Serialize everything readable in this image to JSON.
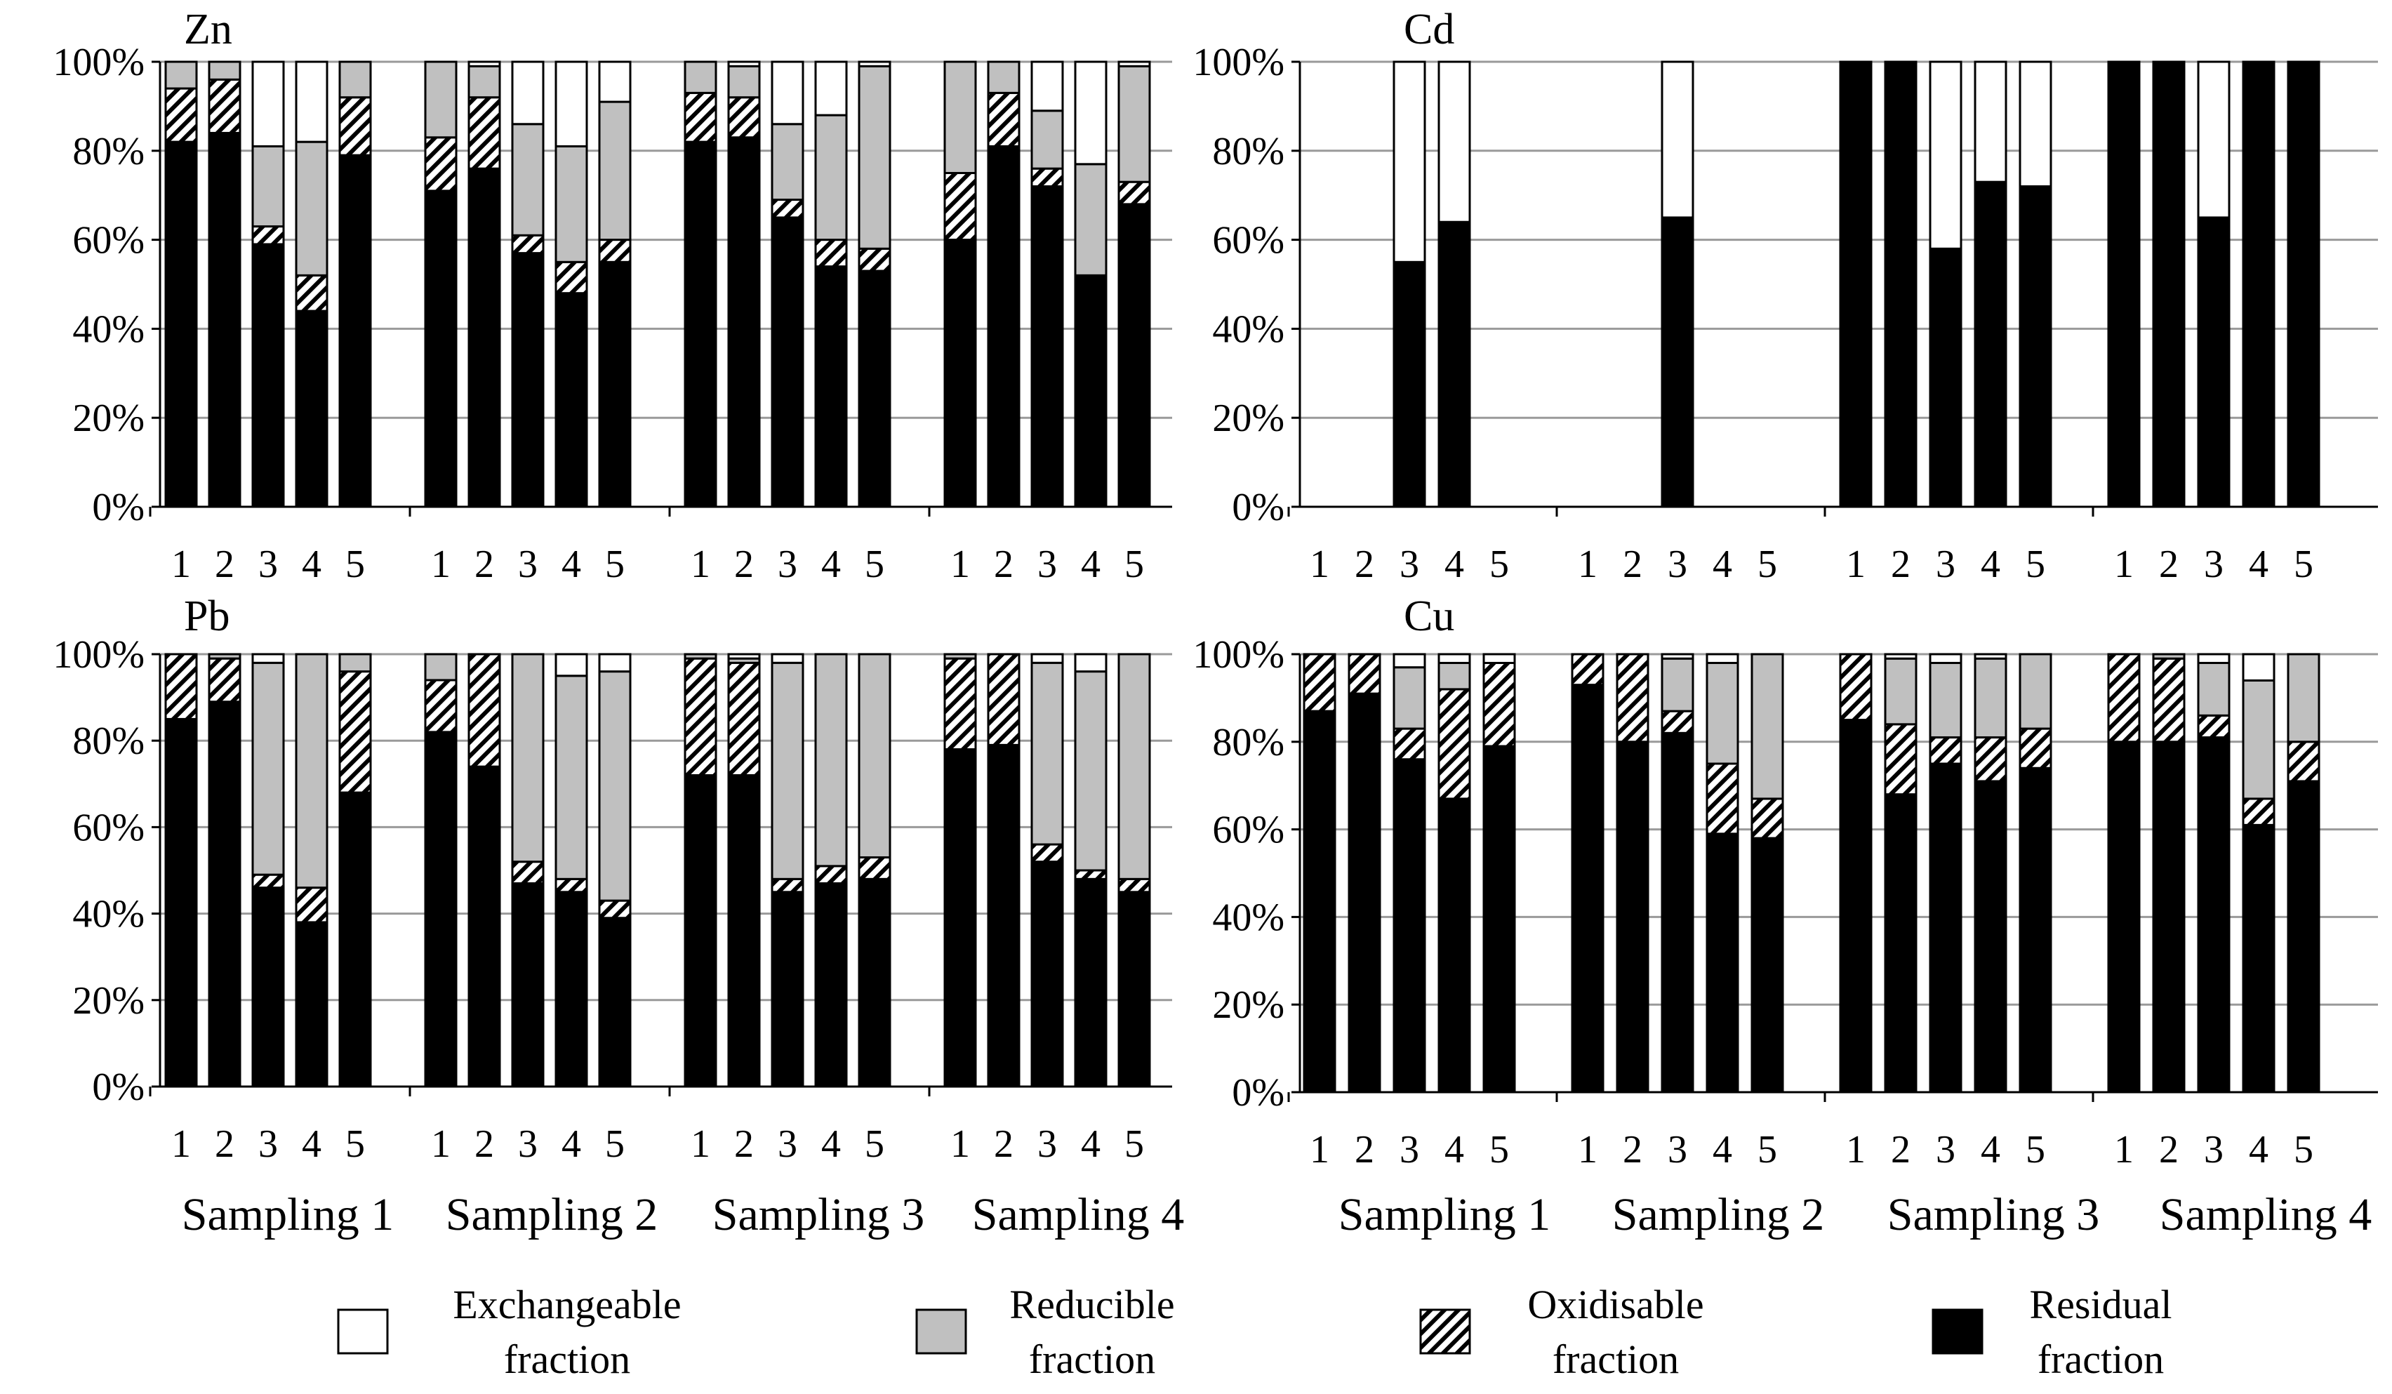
{
  "chart_data": [
    {
      "type": "bar",
      "stacked": true,
      "title": "Zn",
      "ylim": [
        0,
        100
      ],
      "yticks": [
        "0%",
        "20%",
        "40%",
        "60%",
        "80%",
        "100%"
      ],
      "groups": [
        {
          "label": "Sampling 1",
          "bars": [
            {
              "label": "1",
              "residual": 82,
              "oxidisable": 12,
              "reducible": 6,
              "exchangeable": 0
            },
            {
              "label": "2",
              "residual": 84,
              "oxidisable": 12,
              "reducible": 4,
              "exchangeable": 0
            },
            {
              "label": "3",
              "residual": 59,
              "oxidisable": 4,
              "reducible": 18,
              "exchangeable": 19
            },
            {
              "label": "4",
              "residual": 44,
              "oxidisable": 8,
              "reducible": 30,
              "exchangeable": 18
            },
            {
              "label": "5",
              "residual": 79,
              "oxidisable": 13,
              "reducible": 8,
              "exchangeable": 0
            }
          ]
        },
        {
          "label": "Sampling 2",
          "bars": [
            {
              "label": "1",
              "residual": 71,
              "oxidisable": 12,
              "reducible": 17,
              "exchangeable": 0
            },
            {
              "label": "2",
              "residual": 76,
              "oxidisable": 16,
              "reducible": 7,
              "exchangeable": 1
            },
            {
              "label": "3",
              "residual": 57,
              "oxidisable": 4,
              "reducible": 25,
              "exchangeable": 14
            },
            {
              "label": "4",
              "residual": 48,
              "oxidisable": 7,
              "reducible": 26,
              "exchangeable": 19
            },
            {
              "label": "5",
              "residual": 55,
              "oxidisable": 5,
              "reducible": 31,
              "exchangeable": 9
            }
          ]
        },
        {
          "label": "Sampling 3",
          "bars": [
            {
              "label": "1",
              "residual": 82,
              "oxidisable": 11,
              "reducible": 7,
              "exchangeable": 0
            },
            {
              "label": "2",
              "residual": 83,
              "oxidisable": 9,
              "reducible": 7,
              "exchangeable": 1
            },
            {
              "label": "3",
              "residual": 65,
              "oxidisable": 4,
              "reducible": 17,
              "exchangeable": 14
            },
            {
              "label": "4",
              "residual": 54,
              "oxidisable": 6,
              "reducible": 28,
              "exchangeable": 12
            },
            {
              "label": "5",
              "residual": 53,
              "oxidisable": 5,
              "reducible": 41,
              "exchangeable": 1
            }
          ]
        },
        {
          "label": "Sampling 4",
          "bars": [
            {
              "label": "1",
              "residual": 60,
              "oxidisable": 15,
              "reducible": 25,
              "exchangeable": 0
            },
            {
              "label": "2",
              "residual": 81,
              "oxidisable": 12,
              "reducible": 7,
              "exchangeable": 0
            },
            {
              "label": "3",
              "residual": 72,
              "oxidisable": 4,
              "reducible": 13,
              "exchangeable": 11
            },
            {
              "label": "4",
              "residual": 52,
              "oxidisable": 0,
              "reducible": 25,
              "exchangeable": 23
            },
            {
              "label": "5",
              "residual": 68,
              "oxidisable": 5,
              "reducible": 26,
              "exchangeable": 1
            }
          ]
        }
      ]
    },
    {
      "type": "bar",
      "stacked": true,
      "title": "Cd",
      "ylim": [
        0,
        100
      ],
      "yticks": [
        "0%",
        "20%",
        "40%",
        "60%",
        "80%",
        "100%"
      ],
      "groups": [
        {
          "label": "Sampling 1",
          "bars": [
            {
              "label": "1",
              "residual": 0,
              "oxidisable": 0,
              "reducible": 0,
              "exchangeable": 0
            },
            {
              "label": "2",
              "residual": 0,
              "oxidisable": 0,
              "reducible": 0,
              "exchangeable": 0
            },
            {
              "label": "3",
              "residual": 55,
              "oxidisable": 0,
              "reducible": 0,
              "exchangeable": 45
            },
            {
              "label": "4",
              "residual": 64,
              "oxidisable": 0,
              "reducible": 0,
              "exchangeable": 36
            },
            {
              "label": "5",
              "residual": 0,
              "oxidisable": 0,
              "reducible": 0,
              "exchangeable": 0
            }
          ]
        },
        {
          "label": "Sampling 2",
          "bars": [
            {
              "label": "1",
              "residual": 0,
              "oxidisable": 0,
              "reducible": 0,
              "exchangeable": 0
            },
            {
              "label": "2",
              "residual": 0,
              "oxidisable": 0,
              "reducible": 0,
              "exchangeable": 0
            },
            {
              "label": "3",
              "residual": 65,
              "oxidisable": 0,
              "reducible": 0,
              "exchangeable": 35
            },
            {
              "label": "4",
              "residual": 0,
              "oxidisable": 0,
              "reducible": 0,
              "exchangeable": 0
            },
            {
              "label": "5",
              "residual": 0,
              "oxidisable": 0,
              "reducible": 0,
              "exchangeable": 0
            }
          ]
        },
        {
          "label": "Sampling 3",
          "bars": [
            {
              "label": "1",
              "residual": 100,
              "oxidisable": 0,
              "reducible": 0,
              "exchangeable": 0
            },
            {
              "label": "2",
              "residual": 100,
              "oxidisable": 0,
              "reducible": 0,
              "exchangeable": 0
            },
            {
              "label": "3",
              "residual": 58,
              "oxidisable": 0,
              "reducible": 0,
              "exchangeable": 42
            },
            {
              "label": "4",
              "residual": 73,
              "oxidisable": 0,
              "reducible": 0,
              "exchangeable": 27
            },
            {
              "label": "5",
              "residual": 72,
              "oxidisable": 0,
              "reducible": 0,
              "exchangeable": 28
            }
          ]
        },
        {
          "label": "Sampling 4",
          "bars": [
            {
              "label": "1",
              "residual": 100,
              "oxidisable": 0,
              "reducible": 0,
              "exchangeable": 0
            },
            {
              "label": "2",
              "residual": 100,
              "oxidisable": 0,
              "reducible": 0,
              "exchangeable": 0
            },
            {
              "label": "3",
              "residual": 65,
              "oxidisable": 0,
              "reducible": 0,
              "exchangeable": 35
            },
            {
              "label": "4",
              "residual": 100,
              "oxidisable": 0,
              "reducible": 0,
              "exchangeable": 0
            },
            {
              "label": "5",
              "residual": 100,
              "oxidisable": 0,
              "reducible": 0,
              "exchangeable": 0
            }
          ]
        }
      ]
    },
    {
      "type": "bar",
      "stacked": true,
      "title": "Pb",
      "ylim": [
        0,
        100
      ],
      "yticks": [
        "0%",
        "20%",
        "40%",
        "60%",
        "80%",
        "100%"
      ],
      "groups": [
        {
          "label": "Sampling 1",
          "bars": [
            {
              "label": "1",
              "residual": 85,
              "oxidisable": 15,
              "reducible": 0,
              "exchangeable": 0
            },
            {
              "label": "2",
              "residual": 89,
              "oxidisable": 10,
              "reducible": 1,
              "exchangeable": 0
            },
            {
              "label": "3",
              "residual": 46,
              "oxidisable": 3,
              "reducible": 49,
              "exchangeable": 2
            },
            {
              "label": "4",
              "residual": 38,
              "oxidisable": 8,
              "reducible": 54,
              "exchangeable": 0
            },
            {
              "label": "5",
              "residual": 68,
              "oxidisable": 28,
              "reducible": 4,
              "exchangeable": 0
            }
          ]
        },
        {
          "label": "Sampling 2",
          "bars": [
            {
              "label": "1",
              "residual": 82,
              "oxidisable": 12,
              "reducible": 6,
              "exchangeable": 0
            },
            {
              "label": "2",
              "residual": 74,
              "oxidisable": 26,
              "reducible": 0,
              "exchangeable": 0
            },
            {
              "label": "3",
              "residual": 47,
              "oxidisable": 5,
              "reducible": 48,
              "exchangeable": 0
            },
            {
              "label": "4",
              "residual": 45,
              "oxidisable": 3,
              "reducible": 47,
              "exchangeable": 5
            },
            {
              "label": "5",
              "residual": 39,
              "oxidisable": 4,
              "reducible": 53,
              "exchangeable": 4
            }
          ]
        },
        {
          "label": "Sampling 3",
          "bars": [
            {
              "label": "1",
              "residual": 72,
              "oxidisable": 27,
              "reducible": 1,
              "exchangeable": 0
            },
            {
              "label": "2",
              "residual": 72,
              "oxidisable": 26,
              "reducible": 1,
              "exchangeable": 1
            },
            {
              "label": "3",
              "residual": 45,
              "oxidisable": 3,
              "reducible": 50,
              "exchangeable": 2
            },
            {
              "label": "4",
              "residual": 47,
              "oxidisable": 4,
              "reducible": 49,
              "exchangeable": 0
            },
            {
              "label": "5",
              "residual": 48,
              "oxidisable": 5,
              "reducible": 47,
              "exchangeable": 0
            }
          ]
        },
        {
          "label": "Sampling 4",
          "bars": [
            {
              "label": "1",
              "residual": 78,
              "oxidisable": 21,
              "reducible": 1,
              "exchangeable": 0
            },
            {
              "label": "2",
              "residual": 79,
              "oxidisable": 21,
              "reducible": 0,
              "exchangeable": 0
            },
            {
              "label": "3",
              "residual": 52,
              "oxidisable": 4,
              "reducible": 42,
              "exchangeable": 2
            },
            {
              "label": "4",
              "residual": 48,
              "oxidisable": 2,
              "reducible": 46,
              "exchangeable": 4
            },
            {
              "label": "5",
              "residual": 45,
              "oxidisable": 3,
              "reducible": 52,
              "exchangeable": 0
            }
          ]
        }
      ]
    },
    {
      "type": "bar",
      "stacked": true,
      "title": "Cu",
      "ylim": [
        0,
        100
      ],
      "yticks": [
        "0%",
        "20%",
        "40%",
        "60%",
        "80%",
        "100%"
      ],
      "groups": [
        {
          "label": "Sampling 1",
          "bars": [
            {
              "label": "1",
              "residual": 87,
              "oxidisable": 13,
              "reducible": 0,
              "exchangeable": 0
            },
            {
              "label": "2",
              "residual": 91,
              "oxidisable": 9,
              "reducible": 0,
              "exchangeable": 0
            },
            {
              "label": "3",
              "residual": 76,
              "oxidisable": 7,
              "reducible": 14,
              "exchangeable": 3
            },
            {
              "label": "4",
              "residual": 67,
              "oxidisable": 25,
              "reducible": 6,
              "exchangeable": 2
            },
            {
              "label": "5",
              "residual": 79,
              "oxidisable": 19,
              "reducible": 0,
              "exchangeable": 2
            }
          ]
        },
        {
          "label": "Sampling 2",
          "bars": [
            {
              "label": "1",
              "residual": 93,
              "oxidisable": 7,
              "reducible": 0,
              "exchangeable": 0
            },
            {
              "label": "2",
              "residual": 80,
              "oxidisable": 20,
              "reducible": 0,
              "exchangeable": 0
            },
            {
              "label": "3",
              "residual": 82,
              "oxidisable": 5,
              "reducible": 12,
              "exchangeable": 1
            },
            {
              "label": "4",
              "residual": 59,
              "oxidisable": 16,
              "reducible": 23,
              "exchangeable": 2
            },
            {
              "label": "5",
              "residual": 58,
              "oxidisable": 9,
              "reducible": 33,
              "exchangeable": 0
            }
          ]
        },
        {
          "label": "Sampling 3",
          "bars": [
            {
              "label": "1",
              "residual": 85,
              "oxidisable": 15,
              "reducible": 0,
              "exchangeable": 0
            },
            {
              "label": "2",
              "residual": 68,
              "oxidisable": 16,
              "reducible": 15,
              "exchangeable": 1
            },
            {
              "label": "3",
              "residual": 75,
              "oxidisable": 6,
              "reducible": 17,
              "exchangeable": 2
            },
            {
              "label": "4",
              "residual": 71,
              "oxidisable": 10,
              "reducible": 18,
              "exchangeable": 1
            },
            {
              "label": "5",
              "residual": 74,
              "oxidisable": 9,
              "reducible": 17,
              "exchangeable": 0
            }
          ]
        },
        {
          "label": "Sampling 4",
          "bars": [
            {
              "label": "1",
              "residual": 80,
              "oxidisable": 20,
              "reducible": 0,
              "exchangeable": 0
            },
            {
              "label": "2",
              "residual": 80,
              "oxidisable": 19,
              "reducible": 1,
              "exchangeable": 0
            },
            {
              "label": "3",
              "residual": 81,
              "oxidisable": 5,
              "reducible": 12,
              "exchangeable": 2
            },
            {
              "label": "4",
              "residual": 61,
              "oxidisable": 6,
              "reducible": 27,
              "exchangeable": 6
            },
            {
              "label": "5",
              "residual": 71,
              "oxidisable": 9,
              "reducible": 20,
              "exchangeable": 0
            }
          ]
        }
      ]
    }
  ],
  "legend": [
    {
      "key": "exchangeable",
      "line1": "Exchangeable",
      "line2": "fraction",
      "color": "#ffffff"
    },
    {
      "key": "reducible",
      "line1": "Reducible",
      "line2": "fraction",
      "color": "#c0c0c0"
    },
    {
      "key": "oxidisable",
      "line1": "Oxidisable",
      "line2": "fraction",
      "color": "hatched"
    },
    {
      "key": "residual",
      "line1": "Residual",
      "line2": "fraction",
      "color": "#000000"
    }
  ]
}
